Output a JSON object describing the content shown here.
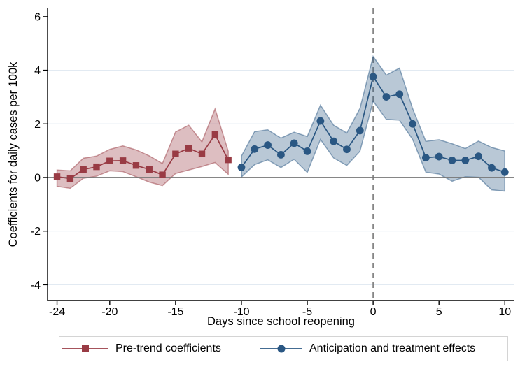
{
  "figure": {
    "y_axis_title": "Coefficients for daily cases per 100k",
    "x_axis_title": "Days since school reopening"
  },
  "legend": {
    "items": [
      {
        "label": "Pre-trend coefficients",
        "marker": "square",
        "color": "#993b44"
      },
      {
        "label": "Anticipation and treatment effects",
        "marker": "circle",
        "color": "#2a5783"
      }
    ]
  },
  "chart_data": {
    "type": "line",
    "title": "",
    "xlabel": "Days since school reopening",
    "ylabel": "Coefficients for daily cases per 100k",
    "xlim": [
      -24.72,
      10.73
    ],
    "ylim": [
      -4.59,
      6.31
    ],
    "x_ticks": [
      -24,
      -20,
      -15,
      -10,
      -5,
      0,
      5,
      10
    ],
    "y_ticks": [
      6,
      4,
      2,
      0,
      -2,
      -4
    ],
    "gridlines_y": [
      4,
      2,
      -2,
      -4
    ],
    "reference_lines": {
      "horizontal_y": 0,
      "vertical_dashed_x": 0
    },
    "legend_position": "bottom",
    "colors": {
      "grid": "#e2eaf2",
      "zero_line": "#757575",
      "event_line": "#868686",
      "axis": "#000000"
    },
    "series": [
      {
        "id": "pretrend",
        "name": "Pre-trend coefficients",
        "marker": "square",
        "color": "#993b44",
        "x": [
          -24,
          -23,
          -22,
          -21,
          -20,
          -19,
          -18,
          -17,
          -16,
          -15,
          -14,
          -13,
          -12,
          -11
        ],
        "y": [
          0.03,
          -0.04,
          0.3,
          0.4,
          0.62,
          0.63,
          0.45,
          0.3,
          0.1,
          0.88,
          1.09,
          0.88,
          1.6,
          0.66
        ],
        "ci_lower": [
          -0.33,
          -0.4,
          -0.03,
          0.05,
          0.25,
          0.22,
          0.03,
          -0.17,
          -0.3,
          0.15,
          0.28,
          0.41,
          0.56,
          0.12
        ],
        "ci_upper": [
          0.28,
          0.25,
          0.72,
          0.8,
          1.05,
          1.18,
          1.03,
          0.81,
          0.52,
          1.7,
          1.95,
          1.33,
          2.56,
          0.98
        ]
      },
      {
        "id": "treatment",
        "name": "Anticipation and treatment effects",
        "marker": "circle",
        "color": "#2a5783",
        "x": [
          -10,
          -9,
          -8,
          -7,
          -6,
          -5,
          -4,
          -3,
          -2,
          -1,
          0,
          1,
          2,
          3,
          4,
          5,
          6,
          7,
          8,
          9,
          10
        ],
        "y": [
          0.38,
          1.06,
          1.21,
          0.85,
          1.28,
          0.98,
          2.11,
          1.35,
          1.05,
          1.75,
          3.76,
          3.01,
          3.11,
          2.0,
          0.74,
          0.78,
          0.64,
          0.64,
          0.79,
          0.36,
          0.2
        ],
        "ci_lower": [
          0.02,
          0.48,
          0.66,
          0.37,
          0.68,
          0.19,
          1.42,
          0.73,
          0.45,
          0.98,
          2.85,
          2.17,
          2.14,
          1.42,
          0.2,
          0.13,
          -0.14,
          0.03,
          0.01,
          -0.46,
          -0.51
        ],
        "ci_upper": [
          0.8,
          1.71,
          1.78,
          1.47,
          1.69,
          1.53,
          2.7,
          1.95,
          1.66,
          2.58,
          4.52,
          3.82,
          4.08,
          2.57,
          1.35,
          1.41,
          1.26,
          1.08,
          1.36,
          1.12,
          0.99
        ]
      }
    ]
  }
}
